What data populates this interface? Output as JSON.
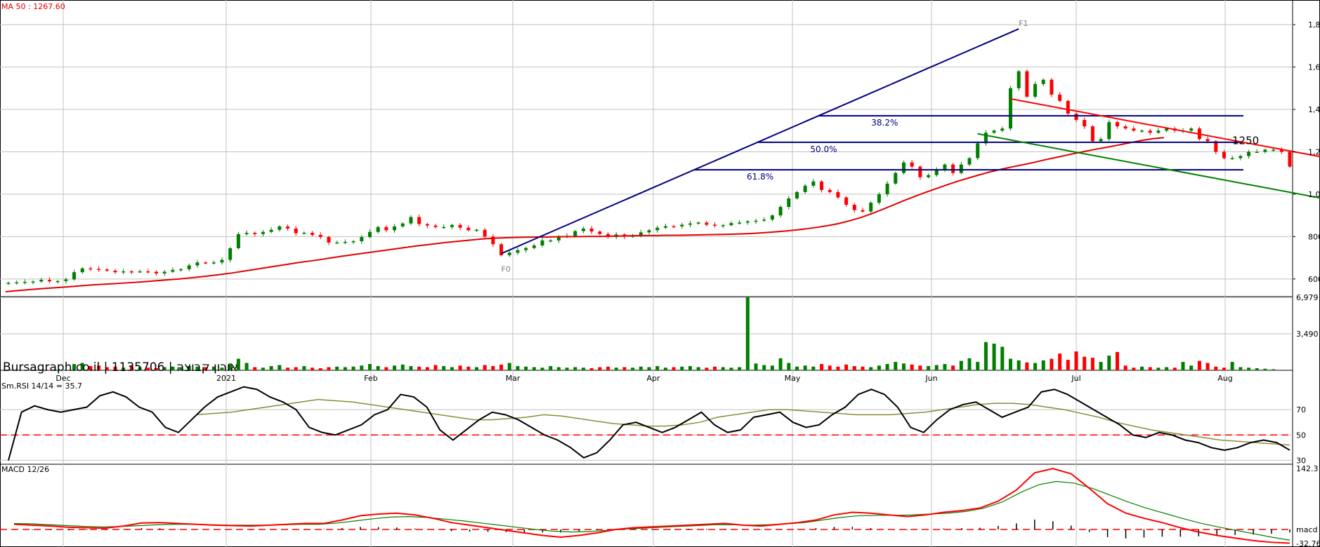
{
  "header": {
    "ma_label": "MA 50 : 1267.60",
    "brand": "Bursagraph.co.il | 1135706 | אורון קבוצה",
    "rsi_label": "Sm.RSI 14/14 = 35.7",
    "macd_label": "MACD 12/26"
  },
  "colors": {
    "up": "#008000",
    "down": "#ff0000",
    "ma": "#e00000",
    "fib": "#000080",
    "trend_upper": "#ff0000",
    "trend_lower": "#008000",
    "rsi": "#000000",
    "rsi_signal": "#8b8b3a",
    "macd_line": "#ff0000",
    "macd_signal": "#008000",
    "grid": "#c0c0c0"
  },
  "chart_data": [
    {
      "type": "candlestick",
      "panel": "price",
      "months": [
        "Dec",
        "2021",
        "Feb",
        "Mar",
        "Apr",
        "May",
        "Jun",
        "Jul",
        "Aug"
      ],
      "yticks": [
        "600",
        "800",
        "1,000",
        "1,200",
        "1,400",
        "1,600",
        "1,800"
      ],
      "ylim": [
        520,
        1850
      ],
      "close": [
        582,
        584,
        586,
        588,
        596,
        589,
        590,
        598,
        632,
        650,
        648,
        645,
        639,
        632,
        636,
        634,
        636,
        634,
        626,
        634,
        643,
        646,
        664,
        678,
        676,
        678,
        690,
        745,
        812,
        818,
        812,
        822,
        832,
        848,
        838,
        816,
        818,
        808,
        798,
        772,
        772,
        775,
        778,
        798,
        822,
        845,
        830,
        848,
        862,
        892,
        859,
        852,
        845,
        845,
        855,
        842,
        830,
        832,
        800,
        764,
        712,
        724,
        736,
        746,
        758,
        782,
        782,
        798,
        803,
        826,
        838,
        824,
        812,
        798,
        810,
        800,
        804,
        820,
        830,
        842,
        849,
        848,
        856,
        862,
        866,
        856,
        852,
        854,
        864,
        866,
        872,
        875,
        880,
        900,
        940,
        980,
        1010,
        1040,
        1060,
        1020,
        1010,
        985,
        950,
        925,
        918,
        960,
        1000,
        1050,
        1100,
        1150,
        1130,
        1080,
        1090,
        1115,
        1140,
        1100,
        1140,
        1170,
        1240,
        1290,
        1300,
        1310,
        1500,
        1580,
        1460,
        1520,
        1540,
        1470,
        1440,
        1380,
        1350,
        1320,
        1250,
        1260,
        1340,
        1320,
        1310,
        1300,
        1300,
        1290,
        1300,
        1310,
        1300,
        1300,
        1310,
        1260,
        1250,
        1200,
        1170,
        1170,
        1180,
        1200,
        1200,
        1210,
        1210,
        1200,
        1130
      ],
      "ma50": [
        540,
        545,
        549,
        553,
        557,
        560,
        564,
        568,
        572,
        575,
        578,
        581,
        584,
        588,
        592,
        596,
        600,
        605,
        610,
        616,
        622,
        629,
        637,
        645,
        653,
        661,
        669,
        677,
        684,
        691,
        699,
        707,
        714,
        721,
        728,
        735,
        742,
        749,
        756,
        762,
        768,
        774,
        779,
        784,
        789,
        792,
        794,
        796,
        797,
        798,
        798,
        799,
        800,
        800,
        801,
        801,
        802,
        803,
        804,
        805,
        805,
        806,
        806,
        807,
        808,
        809,
        810,
        811,
        813,
        815,
        818,
        822,
        826,
        831,
        837,
        844,
        852,
        862,
        875,
        890,
        908,
        928,
        949,
        970,
        990,
        1009,
        1027,
        1045,
        1062,
        1077,
        1092,
        1106,
        1118,
        1129,
        1139,
        1150,
        1162,
        1173,
        1184,
        1195,
        1205,
        1215,
        1224,
        1234,
        1244,
        1254,
        1262,
        1267
      ],
      "annotations": [
        "F1",
        "F0",
        "38.2%",
        "50.0%",
        "61.8%",
        "1250"
      ],
      "fib_levels": [
        {
          "label": "38.2%",
          "value": 1370
        },
        {
          "label": "50.0%",
          "value": 1245
        },
        {
          "label": "61.8%",
          "value": 1115
        }
      ],
      "fib_anchor": {
        "low": 720,
        "high": 1780
      },
      "trendlines": [
        {
          "name": "upper",
          "start": {
            "bar": 122,
            "value": 1450
          },
          "end": {
            "bar": 153,
            "value": 1170
          }
        },
        {
          "name": "lower",
          "start": {
            "bar": 118,
            "value": 1285
          },
          "end": {
            "bar": 153,
            "value": 975
          }
        }
      ]
    },
    {
      "type": "bar",
      "panel": "volume",
      "yticks": [
        "3,490",
        "6,979"
      ],
      "ylim": [
        0,
        6979
      ],
      "values": [
        60,
        40,
        45,
        50,
        60,
        35,
        50,
        40,
        600,
        700,
        400,
        450,
        300,
        350,
        250,
        450,
        300,
        250,
        200,
        300,
        350,
        300,
        400,
        350,
        300,
        350,
        250,
        650,
        1100,
        700,
        300,
        250,
        400,
        500,
        250,
        300,
        400,
        250,
        200,
        300,
        350,
        300,
        350,
        450,
        600,
        400,
        300,
        450,
        550,
        400,
        350,
        300,
        500,
        400,
        300,
        450,
        350,
        300,
        500,
        400,
        550,
        700,
        400,
        350,
        300,
        250,
        400,
        300,
        250,
        300,
        250,
        200,
        300,
        350,
        250,
        300,
        250,
        350,
        300,
        400,
        250,
        300,
        350,
        400,
        300,
        250,
        350,
        300,
        250,
        300,
        6979,
        650,
        500,
        450,
        1150,
        700,
        350,
        450,
        350,
        600,
        450,
        350,
        550,
        400,
        350,
        300,
        450,
        600,
        800,
        650,
        550,
        450,
        400,
        500,
        600,
        450,
        900,
        1150,
        800,
        2700,
        2550,
        2250,
        1100,
        950,
        750,
        700,
        950,
        1100,
        1600,
        1000,
        1800,
        1300,
        1200,
        800,
        1400,
        1750,
        450,
        250,
        350,
        300,
        250,
        300,
        250,
        800,
        450,
        900,
        700,
        350,
        250,
        800,
        300,
        250,
        200,
        150,
        100
      ]
    },
    {
      "type": "line",
      "panel": "rsi",
      "yticks": [
        "30",
        "50",
        "70"
      ],
      "ylim": [
        28,
        90
      ],
      "reference": 50,
      "rsi": [
        30,
        68,
        73,
        70,
        68,
        70,
        72,
        81,
        84,
        80,
        72,
        68,
        56,
        52,
        62,
        72,
        80,
        84,
        88,
        86,
        80,
        76,
        70,
        56,
        52,
        50,
        54,
        58,
        66,
        70,
        82,
        80,
        72,
        54,
        46,
        54,
        62,
        68,
        66,
        62,
        56,
        50,
        46,
        40,
        32,
        36,
        46,
        58,
        60,
        56,
        52,
        56,
        62,
        68,
        58,
        52,
        54,
        64,
        66,
        68,
        60,
        56,
        58,
        66,
        72,
        82,
        86,
        82,
        72,
        56,
        52,
        62,
        70,
        74,
        76,
        70,
        64,
        68,
        72,
        84,
        86,
        82,
        76,
        70,
        64,
        58,
        50,
        48,
        52,
        50,
        46,
        44,
        40,
        38,
        40,
        44,
        46,
        44,
        38
      ],
      "signal": [
        66,
        67,
        68,
        70,
        72,
        74,
        76,
        78,
        77,
        76,
        74,
        72,
        70,
        68,
        66,
        64,
        62,
        62,
        63,
        64,
        66,
        65,
        63,
        61,
        59,
        58,
        57,
        57,
        58,
        60,
        64,
        66,
        68,
        70,
        70,
        69,
        68,
        67,
        66,
        66,
        66,
        67,
        68,
        70,
        72,
        74,
        75,
        75,
        74,
        72,
        70,
        67,
        64,
        60,
        57,
        54,
        52,
        50,
        48,
        46,
        45,
        44,
        43,
        42
      ]
    },
    {
      "type": "line",
      "panel": "macd",
      "yticks": [
        "142.3",
        "macd",
        "-32.76"
      ],
      "ylim": [
        -32.76,
        142.3
      ],
      "macd": [
        12,
        10,
        8,
        5,
        4,
        3,
        8,
        15,
        16,
        14,
        12,
        10,
        9,
        8,
        10,
        12,
        14,
        14,
        22,
        32,
        36,
        38,
        34,
        26,
        16,
        10,
        4,
        -2,
        -8,
        -14,
        -18,
        -14,
        -8,
        0,
        4,
        6,
        8,
        10,
        12,
        14,
        10,
        8,
        12,
        16,
        22,
        34,
        40,
        38,
        34,
        30,
        34,
        40,
        44,
        50,
        66,
        92,
        132,
        142,
        130,
        96,
        60,
        38,
        26,
        16,
        4,
        -6,
        -14,
        -20,
        -26,
        -30,
        -32
      ],
      "signal": [
        14,
        13,
        11,
        9,
        7,
        6,
        7,
        9,
        11,
        12,
        12,
        11,
        10,
        10,
        10,
        11,
        12,
        12,
        15,
        20,
        25,
        29,
        30,
        28,
        24,
        20,
        15,
        10,
        5,
        0,
        -4,
        -6,
        -5,
        -2,
        1,
        3,
        5,
        7,
        9,
        11,
        11,
        10,
        11,
        13,
        16,
        22,
        28,
        32,
        33,
        33,
        34,
        36,
        38,
        42,
        50,
        64,
        86,
        104,
        112,
        108,
        96,
        80,
        64,
        50,
        38,
        26,
        15,
        6,
        -2,
        -10,
        -18,
        -25
      ]
    }
  ]
}
